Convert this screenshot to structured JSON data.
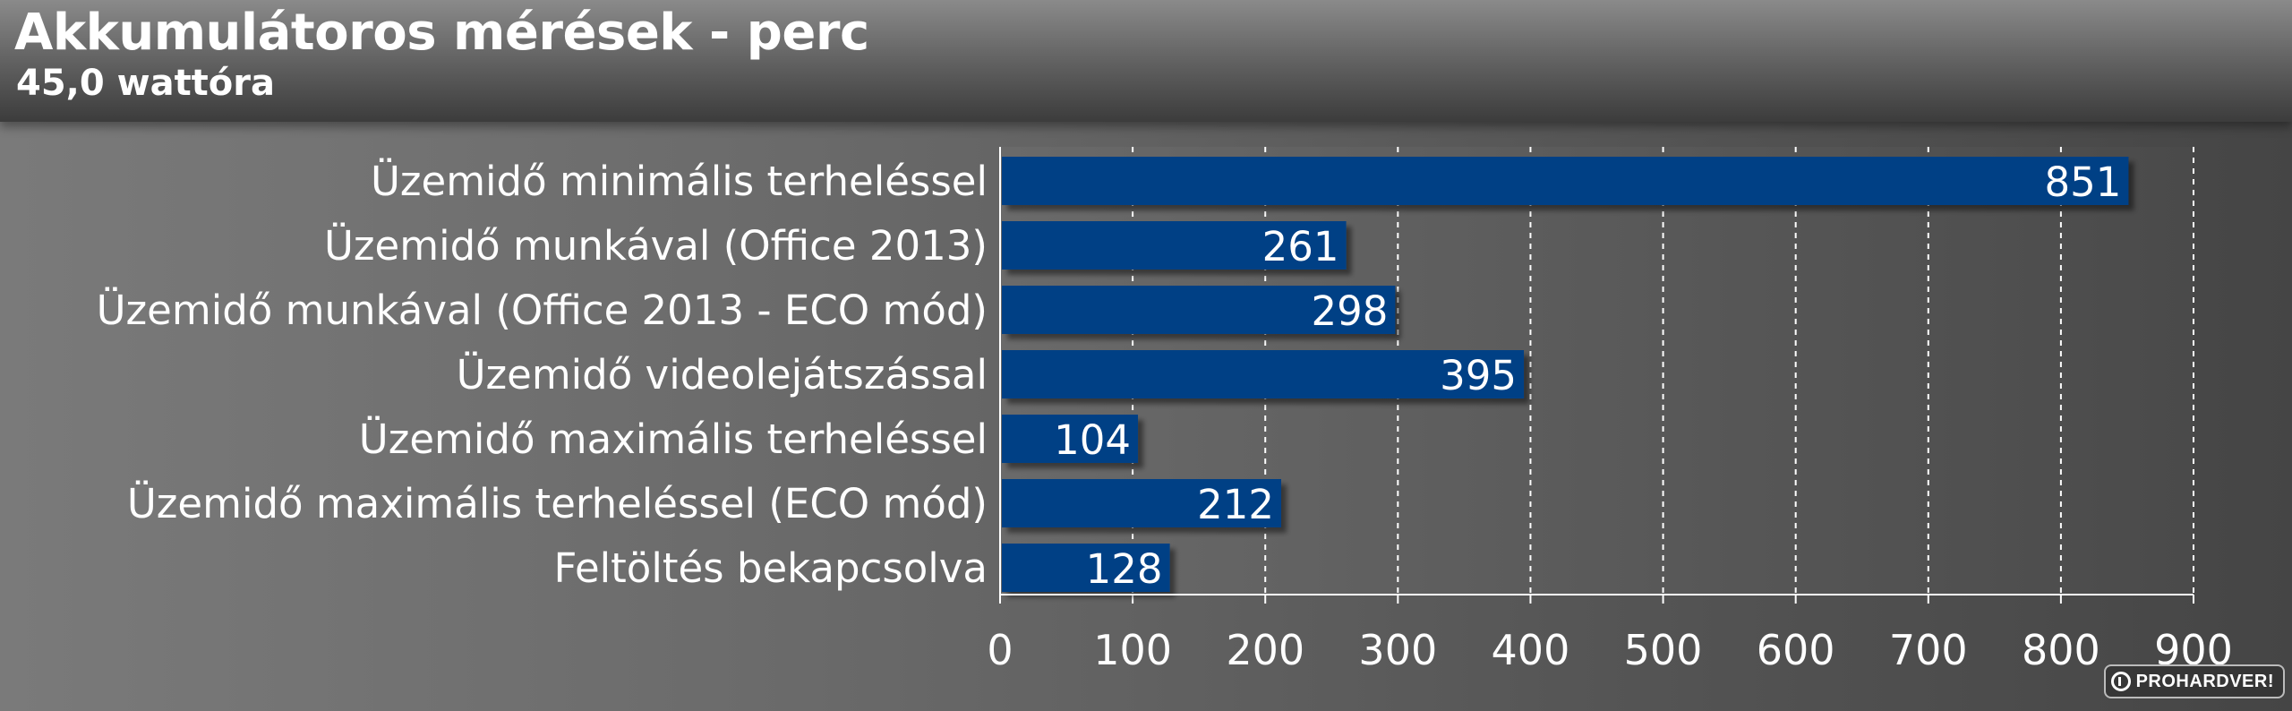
{
  "title": "Akkumulátoros mérések - perc",
  "subtitle": "45,0 wattóra",
  "watermark": "PROHARDVER!",
  "colors": {
    "bar": "#003f85",
    "plot_background": "#555555",
    "grid": "#ffffff"
  },
  "chart_data": {
    "type": "bar",
    "orientation": "horizontal",
    "title": "Akkumulátoros mérések - perc",
    "subtitle": "45,0 wattóra",
    "categories": [
      "Üzemidő minimális terheléssel",
      "Üzemidő munkával (Office 2013)",
      "Üzemidő munkával (Office 2013 - ECO mód)",
      "Üzemidő videolejátszással",
      "Üzemidő maximális terheléssel",
      "Üzemidő maximális terheléssel (ECO mód)",
      "Feltöltés bekapcsolva"
    ],
    "values": [
      851,
      261,
      298,
      395,
      104,
      212,
      128
    ],
    "xlim": [
      0,
      900
    ],
    "ticks": [
      0,
      100,
      200,
      300,
      400,
      500,
      600,
      700,
      800,
      900
    ],
    "grid": true,
    "data_labels": true,
    "legend": false
  }
}
